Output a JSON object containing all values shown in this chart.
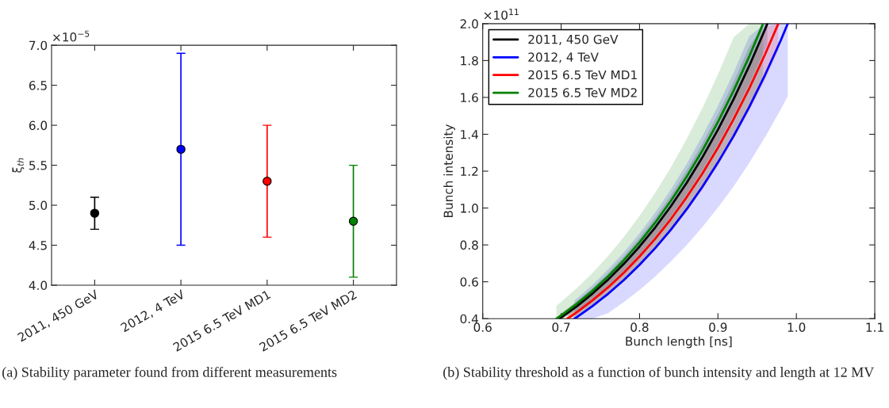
{
  "chart_data": [
    {
      "type": "scatter",
      "ylabel": "ξ$_{th}$",
      "categories": [
        "2011, 450 GeV",
        "2012, 4 TeV",
        "2015 6.5 TeV MD1",
        "2015 6.5 TeV MD2"
      ],
      "values": [
        4.9,
        5.7,
        5.3,
        4.8
      ],
      "colors": [
        "#000000",
        "#0000ff",
        "#ff0000",
        "#008000"
      ],
      "errors": [
        [
          4.7,
          5.1
        ],
        [
          4.5,
          6.9
        ],
        [
          4.6,
          6.0
        ],
        [
          4.1,
          5.5
        ]
      ],
      "ylim": [
        4.0,
        7.0
      ],
      "yticks": [
        {
          "value": 4,
          "label": "4.0"
        },
        4.5,
        {
          "value": 5,
          "label": "5.0"
        },
        5.5,
        {
          "value": 6,
          "label": "6.0"
        },
        6.5,
        {
          "value": 7,
          "label": "7.0"
        }
      ],
      "marker": "circle",
      "grid": false,
      "legend": false,
      "annotations": [
        "×10$^{−5}$",
        "(a) Stability parameter found from different measurements"
      ]
    },
    {
      "type": "line",
      "xlabel": "Bunch length [ns]",
      "ylabel": "Bunch intensity",
      "xlim": [
        0.6,
        1.1
      ],
      "xticks": [
        0.6,
        0.7,
        0.8,
        0.9,
        {
          "value": 1.0,
          "label": "1.0"
        },
        1.1
      ],
      "ylim": [
        0.4,
        2.0
      ],
      "yticks": [
        0.4,
        0.6,
        0.8,
        {
          "value": 1.0,
          "label": "1.0"
        },
        1.2,
        1.4,
        1.6,
        1.8,
        {
          "value": 2.0,
          "label": "2.0"
        }
      ],
      "grid": false,
      "legend": "top left",
      "line_style": "solid",
      "marker": "none",
      "series": [
        {
          "name": "2011, 450 GeV",
          "color": "#000000",
          "x": [
            0.698,
            0.7,
            0.72,
            0.74,
            0.76,
            0.78,
            0.8,
            0.82,
            0.84,
            0.86,
            0.88,
            0.9,
            0.92,
            0.94,
            0.96,
            0.963
          ],
          "values": [
            0.4,
            0.406,
            0.467,
            0.536,
            0.612,
            0.697,
            0.791,
            0.895,
            1.01,
            1.136,
            1.274,
            1.425,
            1.591,
            1.772,
            1.968,
            2.0
          ],
          "lower": [
            0.4,
            0.4,
            0.441,
            0.506,
            0.578,
            0.659,
            0.747,
            0.846,
            0.954,
            1.073,
            1.204,
            1.347,
            1.503,
            1.674,
            1.86,
            1.889
          ],
          "upper": [
            0.424,
            0.43,
            0.495,
            0.567,
            0.648,
            0.738,
            0.838,
            0.948,
            1.069,
            1.203,
            1.349,
            1.51,
            1.685,
            1.877,
            2.0,
            2.0
          ]
        },
        {
          "name": "2012, 4 TeV",
          "color": "#0000ff",
          "x": [
            0.717,
            0.72,
            0.74,
            0.76,
            0.78,
            0.8,
            0.82,
            0.84,
            0.86,
            0.88,
            0.9,
            0.92,
            0.94,
            0.96,
            0.98,
            0.989
          ],
          "values": [
            0.4,
            0.408,
            0.468,
            0.535,
            0.609,
            0.692,
            0.783,
            0.883,
            0.993,
            1.114,
            1.247,
            1.391,
            1.549,
            1.721,
            1.908,
            2.0
          ],
          "lower": [
            0.4,
            0.4,
            0.4,
            0.43,
            0.49,
            0.556,
            0.629,
            0.71,
            0.798,
            0.896,
            1.002,
            1.118,
            1.245,
            1.384,
            1.534,
            1.606
          ],
          "upper": [
            0.499,
            0.509,
            0.584,
            0.668,
            0.76,
            0.863,
            0.976,
            1.101,
            1.239,
            1.39,
            1.555,
            1.735,
            1.932,
            2.0,
            2.0,
            2.0
          ]
        },
        {
          "name": "2015 6.5 TeV MD1",
          "color": "#ff0000",
          "x": [
            0.708,
            0.72,
            0.74,
            0.76,
            0.78,
            0.8,
            0.82,
            0.84,
            0.86,
            0.88,
            0.9,
            0.92,
            0.94,
            0.96,
            0.977
          ],
          "values": [
            0.4,
            0.435,
            0.499,
            0.57,
            0.649,
            0.737,
            0.833,
            0.94,
            1.058,
            1.186,
            1.327,
            1.482,
            1.65,
            1.833,
            2.0
          ],
          "lower": [
            0.4,
            0.403,
            0.462,
            0.528,
            0.601,
            0.682,
            0.772,
            0.87,
            0.979,
            1.098,
            1.229,
            1.372,
            1.527,
            1.697,
            1.853
          ],
          "upper": [
            0.433,
            0.471,
            0.54,
            0.617,
            0.702,
            0.797,
            0.902,
            1.017,
            1.144,
            1.283,
            1.436,
            1.603,
            1.785,
            1.983,
            2.0
          ]
        },
        {
          "name": "2015 6.5 TeV MD2",
          "color": "#008000",
          "x": [
            0.694,
            0.7,
            0.72,
            0.74,
            0.76,
            0.78,
            0.8,
            0.82,
            0.84,
            0.86,
            0.88,
            0.9,
            0.92,
            0.94,
            0.9575
          ],
          "values": [
            0.4,
            0.418,
            0.481,
            0.551,
            0.63,
            0.717,
            0.814,
            0.921,
            1.039,
            1.169,
            1.311,
            1.467,
            1.637,
            1.823,
            2.0
          ],
          "lower": [
            0.4,
            0.4,
            0.411,
            0.472,
            0.539,
            0.614,
            0.697,
            0.788,
            0.889,
            1.0,
            1.122,
            1.255,
            1.401,
            1.56,
            1.711
          ],
          "upper": [
            0.47,
            0.491,
            0.565,
            0.648,
            0.74,
            0.843,
            0.957,
            1.083,
            1.221,
            1.374,
            1.541,
            1.724,
            1.925,
            2.0,
            2.0
          ]
        }
      ],
      "annotations": [
        "×10$^{11}$",
        "(b) Stability threshold as a function of bunch intensity and length at 12 MV"
      ]
    }
  ]
}
